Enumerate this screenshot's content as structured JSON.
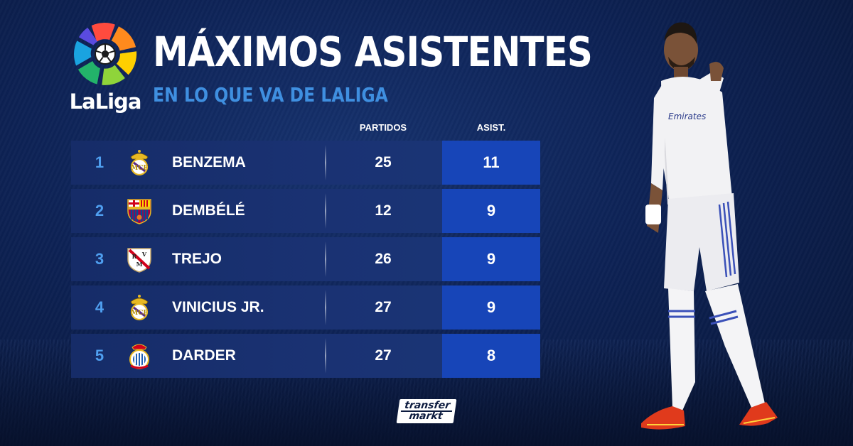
{
  "logo": {
    "text": "LaLiga"
  },
  "title": "MÁXIMOS ASISTENTES",
  "subtitle": "EN LO QUE VA DE LALIGA",
  "columns": {
    "games": "PARTIDOS",
    "assists": "ASIST."
  },
  "rows": [
    {
      "rank": "1",
      "name": "BENZEMA",
      "games": "25",
      "assists": "11",
      "crest": "real-madrid-crest-icon"
    },
    {
      "rank": "2",
      "name": "DEMBÉLÉ",
      "games": "12",
      "assists": "9",
      "crest": "barcelona-crest-icon"
    },
    {
      "rank": "3",
      "name": "TREJO",
      "games": "26",
      "assists": "9",
      "crest": "rayo-vallecano-crest-icon"
    },
    {
      "rank": "4",
      "name": "VINICIUS JR.",
      "games": "27",
      "assists": "9",
      "crest": "real-madrid-crest-icon"
    },
    {
      "rank": "5",
      "name": "DARDER",
      "games": "27",
      "assists": "8",
      "crest": "espanyol-crest-icon"
    }
  ],
  "brand": {
    "line1": "transfer",
    "line2": "markt"
  },
  "colors": {
    "background": "#0d2255",
    "row": "#1a3273",
    "assists_cell": "#1745b8",
    "rank": "#4f9ff0",
    "subtitle": "#3f8fe0"
  }
}
